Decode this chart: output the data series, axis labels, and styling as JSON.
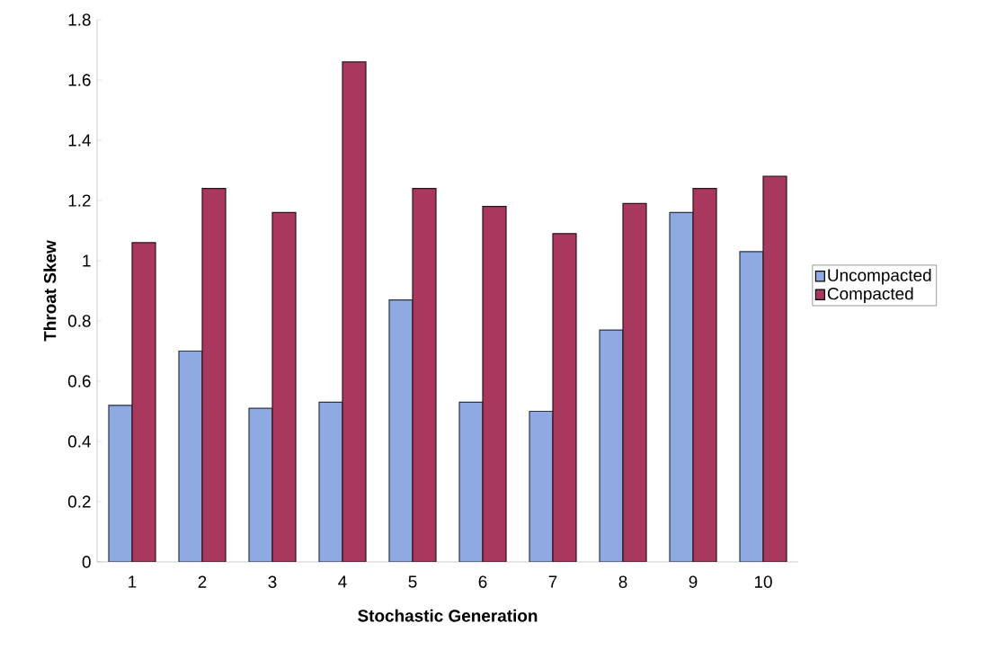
{
  "chart_data": {
    "type": "bar",
    "xlabel": "Stochastic Generation",
    "ylabel": "Throat Skew",
    "categories": [
      "1",
      "2",
      "3",
      "4",
      "5",
      "6",
      "7",
      "8",
      "9",
      "10"
    ],
    "series": [
      {
        "name": "Uncompacted",
        "color": "#8fa9e2",
        "values": [
          0.52,
          0.7,
          0.51,
          0.53,
          0.87,
          0.53,
          0.5,
          0.77,
          1.16,
          1.03
        ]
      },
      {
        "name": "Compacted",
        "color": "#a8385e",
        "values": [
          1.06,
          1.24,
          1.16,
          1.66,
          1.24,
          1.18,
          1.09,
          1.19,
          1.24,
          1.28
        ]
      }
    ],
    "ylim": [
      0,
      1.8
    ],
    "yticks": [
      0,
      0.2,
      0.4,
      0.6,
      0.8,
      1,
      1.2,
      1.4,
      1.6,
      1.8
    ],
    "legend": "right"
  }
}
